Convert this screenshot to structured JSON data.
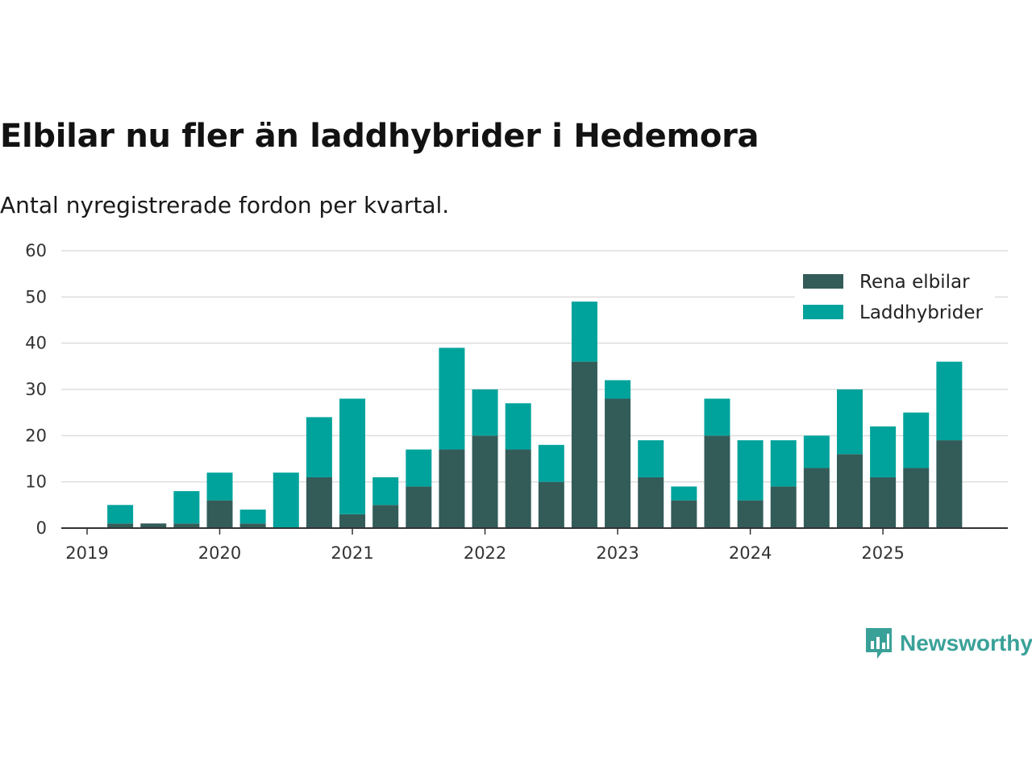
{
  "title": "Elbilar nu fler än laddhybrider i Hedemora",
  "subtitle": "Antal nyregistrerade fordon per kvartal.",
  "brand": {
    "name": "Newsworthy",
    "logo_icon": "bar-chart-bubble-icon"
  },
  "colors": {
    "rena_elbilar": "#335c59",
    "laddhybrider": "#00a39c",
    "grid": "#dddddd",
    "axis": "#333333",
    "brand": "#3aa198"
  },
  "chart_data": {
    "type": "bar",
    "stacked": true,
    "title": "Elbilar nu fler än laddhybrider i Hedemora",
    "subtitle": "Antal nyregistrerade fordon per kvartal.",
    "xlabel": "",
    "ylabel": "",
    "ylim": [
      0,
      60
    ],
    "yticks": [
      0,
      10,
      20,
      30,
      40,
      50,
      60
    ],
    "xtick_labels": [
      "2019",
      "2020",
      "2021",
      "2022",
      "2023",
      "2024",
      "2025"
    ],
    "grid": true,
    "legend_position": "top-right",
    "categories": [
      "2019 Q1",
      "2019 Q2",
      "2019 Q3",
      "2019 Q4",
      "2020 Q1",
      "2020 Q2",
      "2020 Q3",
      "2020 Q4",
      "2021 Q1",
      "2021 Q2",
      "2021 Q3",
      "2021 Q4",
      "2022 Q1",
      "2022 Q2",
      "2022 Q3",
      "2022 Q4",
      "2023 Q1",
      "2023 Q2",
      "2023 Q3",
      "2023 Q4",
      "2024 Q1",
      "2024 Q2",
      "2024 Q3",
      "2024 Q4",
      "2025 Q1",
      "2025 Q2",
      "2025 Q3"
    ],
    "series": [
      {
        "name": "Rena elbilar",
        "values": [
          0,
          1,
          1,
          1,
          6,
          1,
          0,
          11,
          3,
          5,
          9,
          17,
          20,
          17,
          10,
          36,
          28,
          11,
          6,
          20,
          6,
          9,
          13,
          16,
          11,
          13,
          19
        ]
      },
      {
        "name": "Laddhybrider",
        "values": [
          0,
          4,
          0,
          7,
          6,
          3,
          12,
          13,
          25,
          6,
          8,
          22,
          10,
          10,
          8,
          13,
          4,
          8,
          3,
          8,
          13,
          10,
          7,
          14,
          11,
          12,
          17
        ]
      }
    ]
  }
}
